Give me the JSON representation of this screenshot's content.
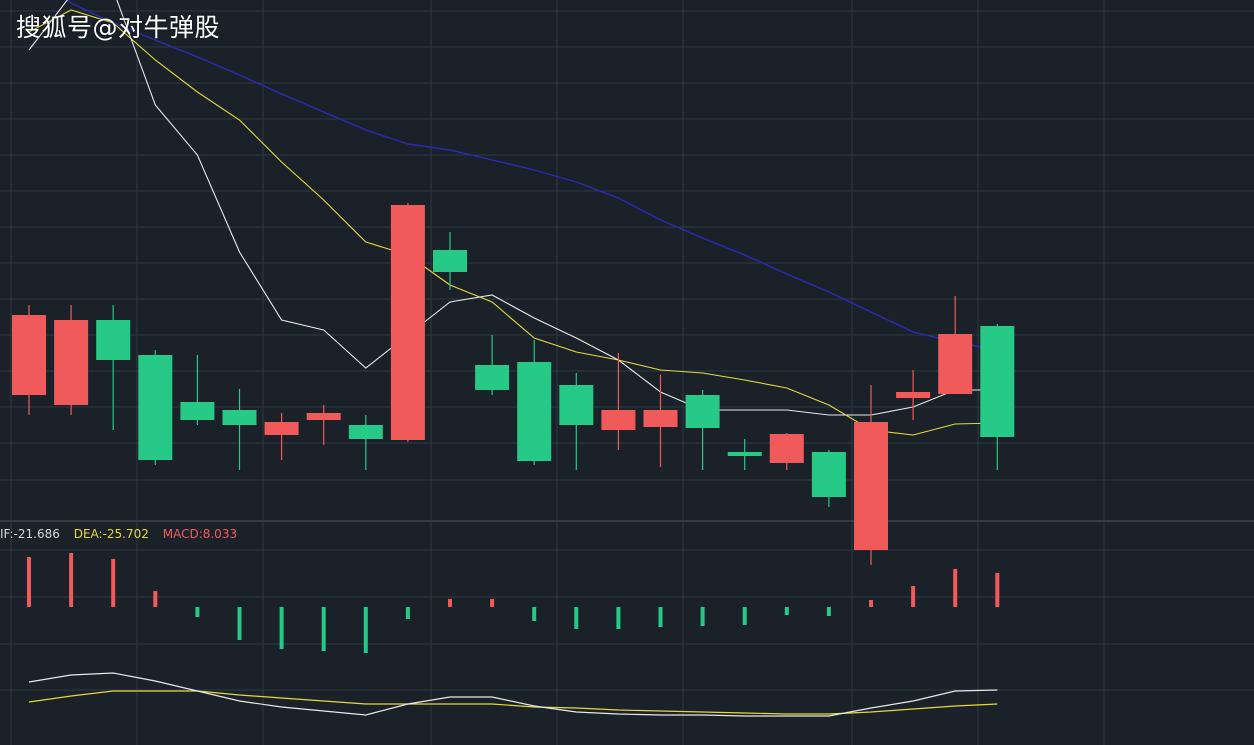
{
  "watermark": "搜狐号@对牛弹股",
  "legend": {
    "dif_text": "IF:-21.686",
    "dea_text": "DEA:-25.702",
    "macd_text": "MACD:8.033"
  },
  "colors": {
    "background": "#1b2129",
    "grid": "#2e3742",
    "up": "#f05a5a",
    "down": "#26c985",
    "ma_fast": "#e8e8e8",
    "ma_mid": "#e5d93a",
    "ma_slow": "#2a2ab8",
    "dif": "#e8e8e8",
    "dea": "#e5d93a"
  },
  "chart_data": [
    {
      "type": "candlestick",
      "title": "",
      "ylim": [
        0,
        520
      ],
      "grid": true,
      "candles": [
        {
          "open": 75,
          "close": 155,
          "high": 165,
          "low": 55,
          "dir": "up"
        },
        {
          "open": 65,
          "close": 150,
          "high": 165,
          "low": 55,
          "dir": "up"
        },
        {
          "open": 150,
          "close": 110,
          "high": 165,
          "low": 40,
          "dir": "down"
        },
        {
          "open": 115,
          "close": 10,
          "high": 120,
          "low": 5,
          "dir": "down"
        },
        {
          "open": 68,
          "close": 50,
          "high": 115,
          "low": 45,
          "dir": "down"
        },
        {
          "open": 60,
          "close": 45,
          "high": 81,
          "low": 0,
          "dir": "down"
        },
        {
          "open": 35,
          "close": 48,
          "high": 57,
          "low": 10,
          "dir": "up"
        },
        {
          "open": 50,
          "close": 57,
          "high": 65,
          "low": 25,
          "dir": "up"
        },
        {
          "open": 45,
          "close": 31,
          "high": 55,
          "low": 0,
          "dir": "down"
        },
        {
          "open": 30,
          "close": 265,
          "high": 267,
          "low": 28,
          "dir": "up"
        },
        {
          "open": 220,
          "close": 198,
          "high": 238,
          "low": 180,
          "dir": "down"
        },
        {
          "open": 105,
          "close": 80,
          "high": 135,
          "low": 75,
          "dir": "down"
        },
        {
          "open": 108,
          "close": 9,
          "high": 130,
          "low": 5,
          "dir": "down"
        },
        {
          "open": 85,
          "close": 45,
          "high": 97,
          "low": 0,
          "dir": "down"
        },
        {
          "open": 40,
          "close": 60,
          "high": 117,
          "low": 20,
          "dir": "up"
        },
        {
          "open": 43,
          "close": 60,
          "high": 95,
          "low": 3,
          "dir": "up"
        },
        {
          "open": 75,
          "close": 42,
          "high": 80,
          "low": 0,
          "dir": "down"
        },
        {
          "open": 18,
          "close": 14,
          "high": 31,
          "low": 0,
          "dir": "down"
        },
        {
          "open": 7,
          "close": 36,
          "high": 37,
          "low": 0,
          "dir": "up"
        },
        {
          "open": 18,
          "close": -27,
          "high": 20,
          "low": -37,
          "dir": "down"
        },
        {
          "open": -80,
          "close": 48,
          "high": 85,
          "low": -95,
          "dir": "up"
        },
        {
          "open": 72,
          "close": 78,
          "high": 100,
          "low": 50,
          "dir": "up"
        },
        {
          "open": 76,
          "close": 136,
          "high": 174,
          "low": 76,
          "dir": "up"
        },
        {
          "open": 144,
          "close": 33,
          "high": 146,
          "low": 0,
          "dir": "down"
        }
      ],
      "ma_fast": [
        420,
        475,
        480,
        365,
        315,
        218,
        150,
        140,
        102,
        135,
        168,
        175,
        152,
        132,
        110,
        78,
        60,
        60,
        60,
        55,
        55,
        63,
        80,
        80
      ],
      "ma_mid": [
        438,
        460,
        447,
        410,
        378,
        350,
        308,
        270,
        228,
        215,
        185,
        168,
        132,
        118,
        110,
        100,
        97,
        90,
        82,
        65,
        40,
        35,
        46,
        47
      ],
      "ma_slow": [
        500,
        467,
        447,
        430,
        413,
        395,
        376,
        358,
        340,
        326,
        320,
        310,
        300,
        288,
        272,
        250,
        232,
        215,
        196,
        178,
        158,
        138,
        128,
        120
      ]
    },
    {
      "type": "bar+line",
      "title": "",
      "ylim": [
        -40,
        60
      ],
      "grid": true,
      "macd": [
        50,
        54,
        48,
        16,
        -10,
        -33,
        -42,
        -44,
        -46,
        -12,
        8,
        8,
        -14,
        -22,
        -22,
        -20,
        -19,
        -18,
        -8,
        -9,
        7,
        21,
        38,
        34
      ],
      "dif": [
        -75,
        -68,
        -66,
        -74,
        -84,
        -94,
        -100,
        -104,
        -108,
        -97,
        -90,
        -90,
        -99,
        -105,
        -107,
        -108,
        -108,
        -109,
        -109,
        -109,
        -101,
        -94,
        -84,
        -83
      ],
      "dea": [
        -95,
        -89,
        -84,
        -84,
        -84,
        -88,
        -91,
        -94,
        -97,
        -97,
        -97,
        -97,
        -100,
        -101,
        -103,
        -104,
        -105,
        -106,
        -107,
        -107,
        -105,
        -102,
        -99,
        -97
      ]
    }
  ]
}
